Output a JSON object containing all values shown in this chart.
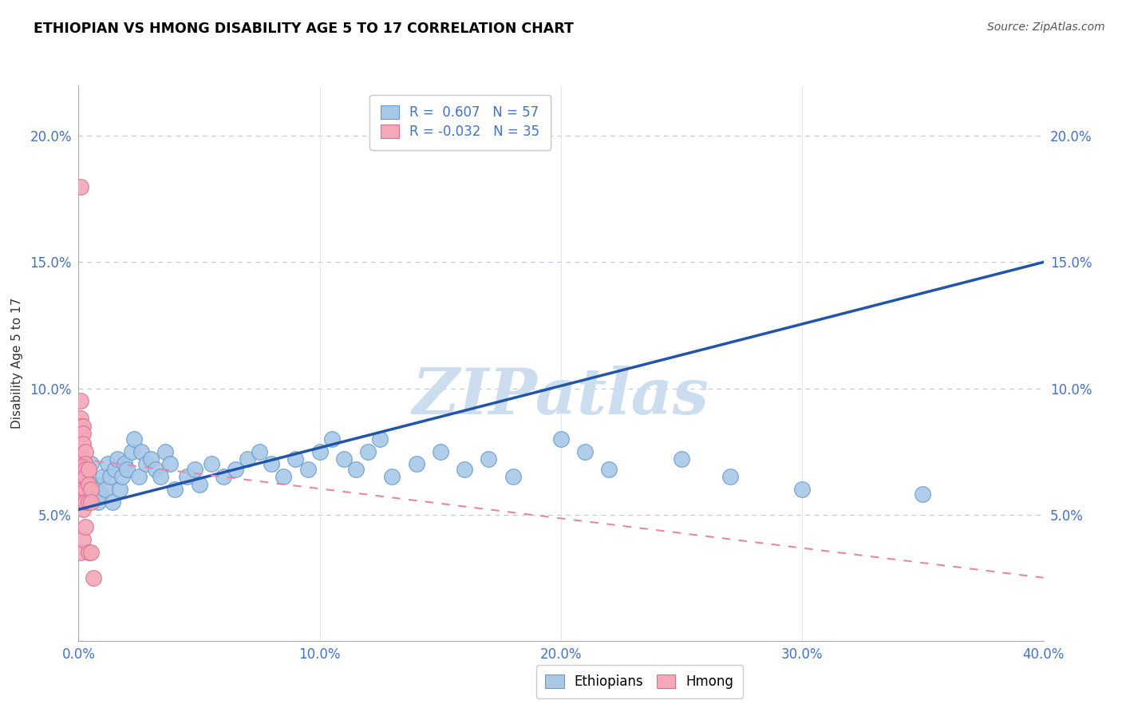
{
  "title": "ETHIOPIAN VS HMONG DISABILITY AGE 5 TO 17 CORRELATION CHART",
  "source": "Source: ZipAtlas.com",
  "ylabel": "Disability Age 5 to 17",
  "xlim": [
    0.0,
    0.4
  ],
  "ylim": [
    0.0,
    0.22
  ],
  "xticks": [
    0.0,
    0.1,
    0.2,
    0.3,
    0.4
  ],
  "xtick_labels": [
    "0.0%",
    "10.0%",
    "20.0%",
    "30.0%",
    "40.0%"
  ],
  "ytick_positions": [
    0.05,
    0.1,
    0.15,
    0.2
  ],
  "ytick_labels": [
    "5.0%",
    "10.0%",
    "15.0%",
    "20.0%"
  ],
  "r_ethiopian": 0.607,
  "n_ethiopian": 57,
  "r_hmong": -0.032,
  "n_hmong": 35,
  "blue_color": "#a8c8e8",
  "blue_edge": "#6699cc",
  "pink_color": "#f4a8b8",
  "pink_edge": "#d87090",
  "line_blue": "#2255aa",
  "line_pink": "#e888a0",
  "watermark": "ZIPatlas",
  "watermark_color": "#ccddf0",
  "tick_color": "#4472c4",
  "ethiopian_x": [
    0.005,
    0.007,
    0.008,
    0.009,
    0.01,
    0.011,
    0.012,
    0.013,
    0.014,
    0.015,
    0.016,
    0.017,
    0.018,
    0.019,
    0.02,
    0.022,
    0.023,
    0.025,
    0.026,
    0.028,
    0.03,
    0.032,
    0.034,
    0.036,
    0.038,
    0.04,
    0.045,
    0.048,
    0.05,
    0.055,
    0.06,
    0.065,
    0.07,
    0.075,
    0.08,
    0.085,
    0.09,
    0.095,
    0.1,
    0.105,
    0.11,
    0.115,
    0.12,
    0.125,
    0.13,
    0.14,
    0.15,
    0.16,
    0.17,
    0.18,
    0.2,
    0.21,
    0.22,
    0.25,
    0.27,
    0.3,
    0.35
  ],
  "ethiopian_y": [
    0.07,
    0.062,
    0.055,
    0.058,
    0.065,
    0.06,
    0.07,
    0.065,
    0.055,
    0.068,
    0.072,
    0.06,
    0.065,
    0.07,
    0.068,
    0.075,
    0.08,
    0.065,
    0.075,
    0.07,
    0.072,
    0.068,
    0.065,
    0.075,
    0.07,
    0.06,
    0.065,
    0.068,
    0.062,
    0.07,
    0.065,
    0.068,
    0.072,
    0.075,
    0.07,
    0.065,
    0.072,
    0.068,
    0.075,
    0.08,
    0.072,
    0.068,
    0.075,
    0.08,
    0.065,
    0.07,
    0.075,
    0.068,
    0.072,
    0.065,
    0.08,
    0.075,
    0.068,
    0.072,
    0.065,
    0.06,
    0.058
  ],
  "hmong_x": [
    0.001,
    0.001,
    0.001,
    0.001,
    0.001,
    0.001,
    0.001,
    0.001,
    0.001,
    0.002,
    0.002,
    0.002,
    0.002,
    0.002,
    0.002,
    0.002,
    0.002,
    0.002,
    0.002,
    0.002,
    0.003,
    0.003,
    0.003,
    0.003,
    0.003,
    0.003,
    0.003,
    0.004,
    0.004,
    0.004,
    0.004,
    0.005,
    0.005,
    0.005,
    0.006
  ],
  "hmong_y": [
    0.18,
    0.095,
    0.088,
    0.085,
    0.082,
    0.075,
    0.065,
    0.06,
    0.035,
    0.085,
    0.082,
    0.078,
    0.072,
    0.068,
    0.065,
    0.06,
    0.058,
    0.055,
    0.052,
    0.04,
    0.075,
    0.07,
    0.068,
    0.065,
    0.06,
    0.055,
    0.045,
    0.068,
    0.062,
    0.055,
    0.035,
    0.06,
    0.055,
    0.035,
    0.025
  ]
}
